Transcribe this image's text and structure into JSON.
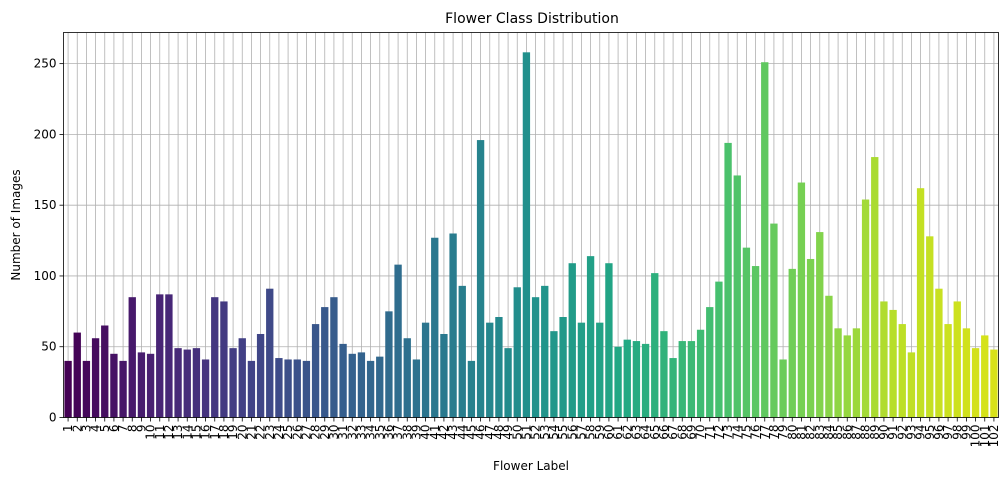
{
  "chart_data": {
    "type": "bar",
    "title": "Flower Class Distribution",
    "xlabel": "Flower Label",
    "ylabel": "Number of Images",
    "ylim": [
      0,
      272
    ],
    "yticks": [
      0,
      50,
      100,
      150,
      200,
      250
    ],
    "grid": true,
    "colormap": "viridis",
    "colormap_start": "#440154",
    "colormap_end": "#d8e219",
    "categories": [
      "1",
      "2",
      "3",
      "4",
      "5",
      "6",
      "7",
      "8",
      "9",
      "10",
      "11",
      "12",
      "13",
      "14",
      "15",
      "16",
      "17",
      "18",
      "19",
      "20",
      "21",
      "22",
      "23",
      "24",
      "25",
      "26",
      "27",
      "28",
      "29",
      "30",
      "31",
      "32",
      "33",
      "34",
      "35",
      "36",
      "37",
      "38",
      "39",
      "40",
      "41",
      "42",
      "43",
      "44",
      "45",
      "46",
      "47",
      "48",
      "49",
      "50",
      "51",
      "52",
      "53",
      "54",
      "55",
      "56",
      "57",
      "58",
      "59",
      "60",
      "61",
      "62",
      "63",
      "64",
      "65",
      "66",
      "67",
      "68",
      "69",
      "70",
      "71",
      "72",
      "73",
      "74",
      "75",
      "76",
      "77",
      "78",
      "79",
      "80",
      "81",
      "82",
      "83",
      "84",
      "85",
      "86",
      "87",
      "88",
      "89",
      "90",
      "91",
      "92",
      "93",
      "94",
      "95",
      "96",
      "97",
      "98",
      "99",
      "100",
      "101",
      "102"
    ],
    "values": [
      40,
      60,
      40,
      56,
      65,
      45,
      40,
      85,
      46,
      45,
      87,
      87,
      49,
      48,
      49,
      41,
      85,
      82,
      49,
      56,
      40,
      59,
      91,
      42,
      41,
      41,
      40,
      66,
      78,
      85,
      52,
      45,
      46,
      40,
      43,
      75,
      108,
      56,
      41,
      67,
      127,
      59,
      130,
      93,
      40,
      196,
      67,
      71,
      49,
      92,
      258,
      85,
      93,
      61,
      71,
      109,
      67,
      114,
      67,
      109,
      50,
      55,
      54,
      52,
      102,
      61,
      42,
      54,
      54,
      62,
      78,
      96,
      194,
      171,
      120,
      107,
      251,
      137,
      41,
      105,
      166,
      112,
      131,
      86,
      63,
      58,
      63,
      154,
      184,
      82,
      76,
      66,
      46,
      162,
      128,
      91,
      66,
      82,
      63,
      49,
      58,
      48
    ]
  }
}
